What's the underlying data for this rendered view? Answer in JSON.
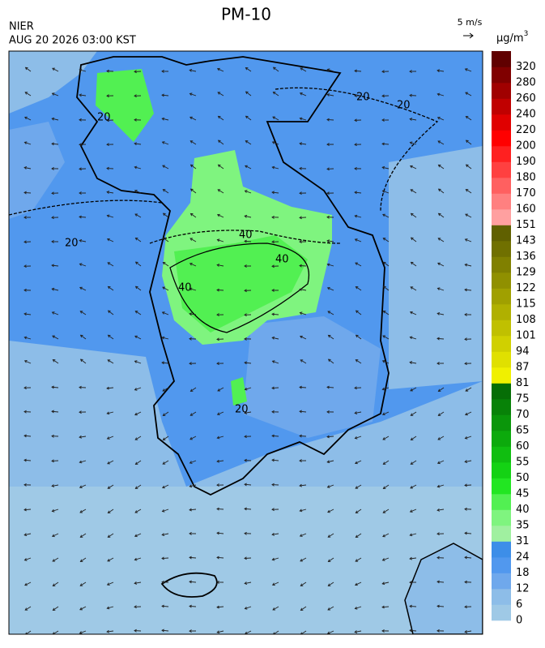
{
  "header": {
    "title": "PM-10",
    "agency": "NIER",
    "timestamp": "AUG 20 2026 03:00 KST"
  },
  "wind_scale": {
    "label": "5 m/s"
  },
  "colorbar": {
    "unit": "μg/m",
    "unit_superscript": "3",
    "levels": [
      0,
      6,
      12,
      18,
      24,
      31,
      35,
      40,
      45,
      50,
      55,
      60,
      65,
      70,
      75,
      81,
      87,
      94,
      101,
      108,
      115,
      122,
      129,
      136,
      143,
      151,
      160,
      170,
      180,
      190,
      200,
      220,
      240,
      260,
      280,
      320
    ],
    "colors": [
      "#9fc9e6",
      "#8dbde8",
      "#6fa8ec",
      "#5198ee",
      "#3d8ee8",
      "#a0f0a0",
      "#7ff47f",
      "#52f052",
      "#22e622",
      "#14d214",
      "#10be10",
      "#0caa0c",
      "#0a960a",
      "#088208",
      "#066e06",
      "#f0f000",
      "#e0e000",
      "#d0d000",
      "#c0c000",
      "#b0b000",
      "#a0a000",
      "#909000",
      "#808000",
      "#707000",
      "#606000",
      "#ffa0a0",
      "#ff8080",
      "#ff6060",
      "#ff4040",
      "#ff2020",
      "#ff0000",
      "#e00000",
      "#c00000",
      "#a00000",
      "#800000",
      "#600000"
    ]
  },
  "contour_labels": [
    "20",
    "40"
  ]
}
